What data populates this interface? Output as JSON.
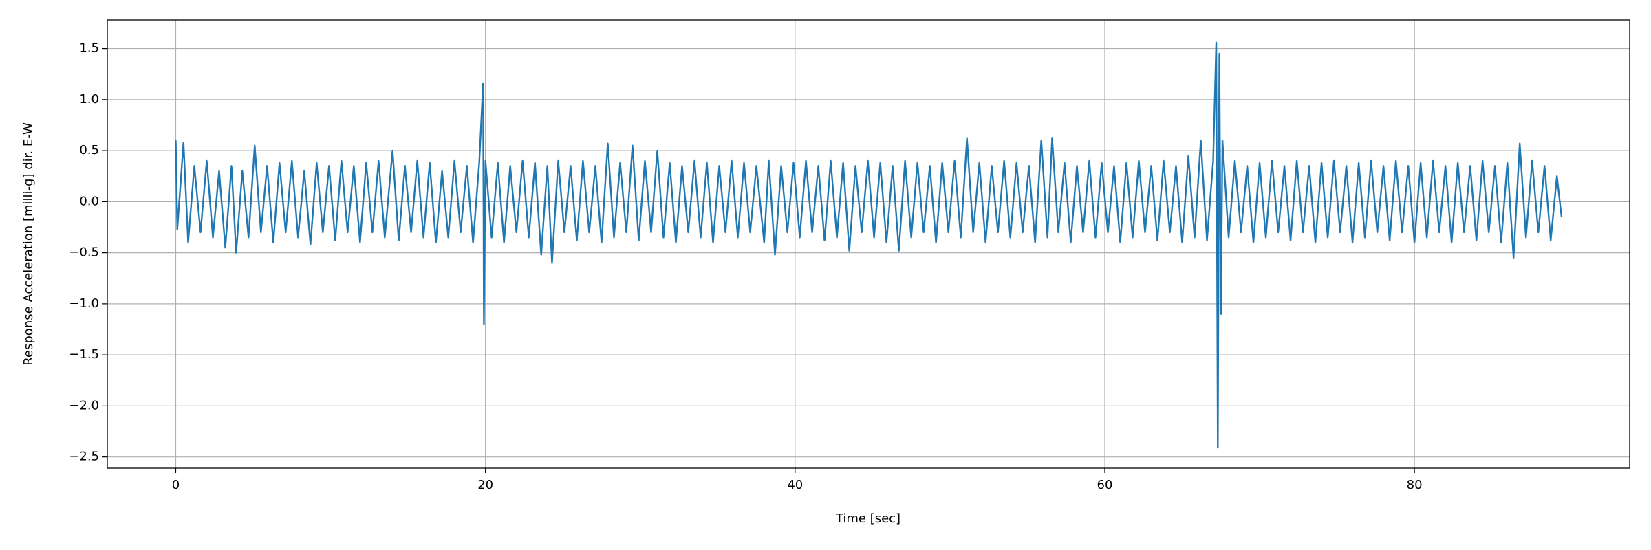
{
  "chart_data": {
    "type": "line",
    "xlabel": "Time [sec]",
    "ylabel": "Response Acceleration [milli-g] dir. E-W",
    "grid": true,
    "xlim": [
      -4.42,
      93.9
    ],
    "ylim": [
      -2.61,
      1.78
    ],
    "xticks": [
      0,
      20,
      40,
      60,
      80
    ],
    "yticks": [
      {
        "value": -2.5,
        "label": "−2.5"
      },
      {
        "value": -2.0,
        "label": "−2.0"
      },
      {
        "value": -1.5,
        "label": "−1.5"
      },
      {
        "value": -1.0,
        "label": "−1.0"
      },
      {
        "value": -0.5,
        "label": "−0.5"
      },
      {
        "value": 0,
        "label": "0.0"
      },
      0.5,
      {
        "value": 1.0,
        "label": "1.0"
      },
      1.5
    ],
    "x": [
      0,
      0.1,
      0.5,
      0.8,
      1.2,
      1.6,
      2,
      2.4,
      2.8,
      3.2,
      3.6,
      3.9,
      4.3,
      4.7,
      5.1,
      5.5,
      5.9,
      6.3,
      6.7,
      7.1,
      7.5,
      7.9,
      8.3,
      8.7,
      9.1,
      9.5,
      9.9,
      10.3,
      10.7,
      11.1,
      11.5,
      11.9,
      12.3,
      12.7,
      13.1,
      13.5,
      14.0,
      14.4,
      14.8,
      15.2,
      15.6,
      16.0,
      16.4,
      16.8,
      17.2,
      17.6,
      18.0,
      18.4,
      18.8,
      19.2,
      19.6,
      19.85,
      19.9,
      20.0,
      20.4,
      20.8,
      21.2,
      21.6,
      22.0,
      22.4,
      22.8,
      23.2,
      23.6,
      24.0,
      24.3,
      24.7,
      25.1,
      25.5,
      25.9,
      26.3,
      26.7,
      27.1,
      27.5,
      27.9,
      28.3,
      28.7,
      29.1,
      29.5,
      29.9,
      30.3,
      30.7,
      31.1,
      31.5,
      31.9,
      32.3,
      32.7,
      33.1,
      33.5,
      33.9,
      34.3,
      34.7,
      35.1,
      35.5,
      35.9,
      36.3,
      36.7,
      37.1,
      37.5,
      38.0,
      38.3,
      38.7,
      39.1,
      39.5,
      39.9,
      40.3,
      40.7,
      41.1,
      41.5,
      41.9,
      42.3,
      42.7,
      43.1,
      43.5,
      43.9,
      44.3,
      44.7,
      45.1,
      45.5,
      45.9,
      46.3,
      46.7,
      47.1,
      47.5,
      47.9,
      48.3,
      48.7,
      49.1,
      49.5,
      49.9,
      50.3,
      50.7,
      51.1,
      51.5,
      51.9,
      52.3,
      52.7,
      53.1,
      53.5,
      53.9,
      54.3,
      54.7,
      55.1,
      55.5,
      55.9,
      56.3,
      56.6,
      57.0,
      57.4,
      57.8,
      58.2,
      58.6,
      59.0,
      59.4,
      59.8,
      60.2,
      60.6,
      61.0,
      61.4,
      61.8,
      62.2,
      62.6,
      63.0,
      63.4,
      63.8,
      64.2,
      64.6,
      65.0,
      65.4,
      65.8,
      66.2,
      66.6,
      67.0,
      67.2,
      67.3,
      67.4,
      67.5,
      67.6,
      68.0,
      68.4,
      68.8,
      69.2,
      69.6,
      70.0,
      70.4,
      70.8,
      71.2,
      71.6,
      72.0,
      72.4,
      72.8,
      73.2,
      73.6,
      74.0,
      74.4,
      74.8,
      75.2,
      75.6,
      76.0,
      76.4,
      76.8,
      77.2,
      77.6,
      78.0,
      78.4,
      78.8,
      79.2,
      79.6,
      80.0,
      80.4,
      80.8,
      81.2,
      81.6,
      82.0,
      82.4,
      82.8,
      83.2,
      83.6,
      84.0,
      84.4,
      84.8,
      85.2,
      85.6,
      86.0,
      86.4,
      86.8,
      87.2,
      87.6,
      88.0,
      88.4,
      88.8,
      89.2,
      89.5
    ],
    "series": [
      {
        "color": "#1f77b4",
        "values": [
          0.6,
          -0.27,
          0.58,
          -0.4,
          0.35,
          -0.3,
          0.4,
          -0.35,
          0.3,
          -0.45,
          0.35,
          -0.5,
          0.3,
          -0.35,
          0.55,
          -0.3,
          0.35,
          -0.4,
          0.38,
          -0.3,
          0.4,
          -0.35,
          0.3,
          -0.42,
          0.38,
          -0.3,
          0.35,
          -0.38,
          0.4,
          -0.3,
          0.35,
          -0.4,
          0.38,
          -0.3,
          0.4,
          -0.35,
          0.5,
          -0.38,
          0.35,
          -0.3,
          0.4,
          -0.35,
          0.38,
          -0.4,
          0.3,
          -0.35,
          0.4,
          -0.3,
          0.35,
          -0.4,
          0.38,
          1.16,
          -1.2,
          0.4,
          -0.35,
          0.38,
          -0.4,
          0.35,
          -0.3,
          0.4,
          -0.35,
          0.38,
          -0.52,
          0.35,
          -0.6,
          0.4,
          -0.3,
          0.35,
          -0.38,
          0.4,
          -0.3,
          0.35,
          -0.4,
          0.57,
          -0.35,
          0.38,
          -0.3,
          0.55,
          -0.38,
          0.4,
          -0.3,
          0.5,
          -0.35,
          0.38,
          -0.4,
          0.35,
          -0.3,
          0.4,
          -0.35,
          0.38,
          -0.4,
          0.35,
          -0.3,
          0.4,
          -0.35,
          0.38,
          -0.3,
          0.35,
          -0.4,
          0.4,
          -0.52,
          0.35,
          -0.3,
          0.38,
          -0.35,
          0.4,
          -0.3,
          0.35,
          -0.38,
          0.4,
          -0.35,
          0.38,
          -0.48,
          0.35,
          -0.3,
          0.4,
          -0.35,
          0.38,
          -0.4,
          0.35,
          -0.48,
          0.4,
          -0.35,
          0.38,
          -0.3,
          0.35,
          -0.4,
          0.38,
          -0.3,
          0.4,
          -0.35,
          0.62,
          -0.3,
          0.38,
          -0.4,
          0.35,
          -0.3,
          0.4,
          -0.35,
          0.38,
          -0.3,
          0.35,
          -0.4,
          0.6,
          -0.35,
          0.62,
          -0.3,
          0.38,
          -0.4,
          0.35,
          -0.3,
          0.4,
          -0.35,
          0.38,
          -0.3,
          0.35,
          -0.4,
          0.38,
          -0.35,
          0.4,
          -0.3,
          0.35,
          -0.38,
          0.4,
          -0.3,
          0.35,
          -0.4,
          0.45,
          -0.35,
          0.6,
          -0.38,
          0.4,
          1.56,
          -2.41,
          1.45,
          -1.1,
          0.6,
          -0.35,
          0.4,
          -0.3,
          0.35,
          -0.4,
          0.38,
          -0.35,
          0.4,
          -0.3,
          0.35,
          -0.38,
          0.4,
          -0.3,
          0.35,
          -0.4,
          0.38,
          -0.35,
          0.4,
          -0.3,
          0.35,
          -0.4,
          0.38,
          -0.35,
          0.4,
          -0.3,
          0.35,
          -0.38,
          0.4,
          -0.3,
          0.35,
          -0.4,
          0.38,
          -0.35,
          0.4,
          -0.3,
          0.35,
          -0.4,
          0.38,
          -0.3,
          0.35,
          -0.38,
          0.4,
          -0.3,
          0.35,
          -0.4,
          0.38,
          -0.55,
          0.57,
          -0.35,
          0.4,
          -0.3,
          0.35,
          -0.38,
          0.25,
          -0.15
        ]
      }
    ]
  }
}
